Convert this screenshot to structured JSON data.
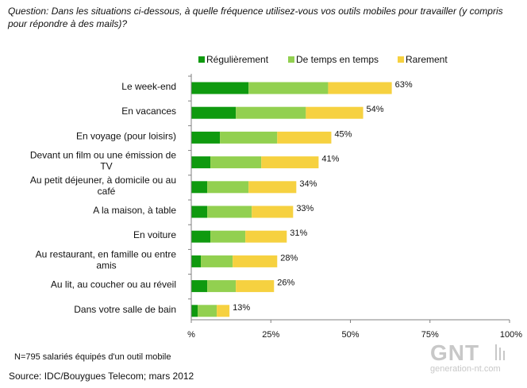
{
  "question": "Question: Dans les situations ci-dessous, à quelle fréquence utilisez-vous vos outils mobiles pour travailler (y compris pour répondre à des mails)?",
  "sample_note": "N=795 salariés équipés d'un outil mobile",
  "source": "Source: IDC/Bouygues Telecom; mars 2012",
  "watermark": {
    "brand": "GNT",
    "site": "generation-nt.com"
  },
  "colors": {
    "regulierement": "#0f9a0f",
    "de_temps_en_temps": "#92d050",
    "rarement": "#f6d140",
    "axis": "#808080",
    "watermark": "#c8c8c8"
  },
  "chart_data": {
    "type": "bar",
    "orientation": "horizontal",
    "stacked": true,
    "xlim": [
      0,
      100
    ],
    "xticks": [
      0,
      25,
      50,
      75,
      100
    ],
    "xtick_labels": [
      "%",
      "25%",
      "50%",
      "75%",
      "100%"
    ],
    "grid": false,
    "legend_position": "top",
    "categories": [
      "Le week-end",
      "En vacances",
      "En voyage (pour loisirs)",
      "Devant un film ou une émission de TV",
      "Au petit déjeuner, à domicile ou au café",
      "A la maison, à table",
      "En voiture",
      "Au restaurant, en famille ou entre amis",
      "Au lit, au coucher ou au réveil",
      "Dans votre salle de bain"
    ],
    "category_lines": [
      [
        "Le week-end"
      ],
      [
        "En vacances"
      ],
      [
        "En voyage (pour loisirs)"
      ],
      [
        "Devant un film ou une émission de",
        "TV"
      ],
      [
        "Au petit déjeuner, à domicile ou au",
        "café"
      ],
      [
        "A la maison, à table"
      ],
      [
        "En voiture"
      ],
      [
        "Au restaurant, en famille ou entre",
        "amis"
      ],
      [
        "Au lit, au coucher ou au réveil"
      ],
      [
        "Dans votre salle de bain"
      ]
    ],
    "series": [
      {
        "name": "Régulièrement",
        "values": [
          18,
          14,
          9,
          6,
          5,
          5,
          6,
          3,
          5,
          2
        ]
      },
      {
        "name": "De temps en temps",
        "values": [
          25,
          22,
          18,
          16,
          13,
          14,
          11,
          10,
          9,
          6
        ]
      },
      {
        "name": "Rarement",
        "values": [
          20,
          18,
          17,
          18,
          15,
          13,
          13,
          14,
          12,
          4
        ]
      }
    ],
    "totals": [
      63,
      54,
      45,
      41,
      34,
      33,
      31,
      28,
      26,
      13
    ],
    "total_labels": [
      "63%",
      "54%",
      "45%",
      "41%",
      "34%",
      "33%",
      "31%",
      "28%",
      "26%",
      "13%"
    ]
  }
}
